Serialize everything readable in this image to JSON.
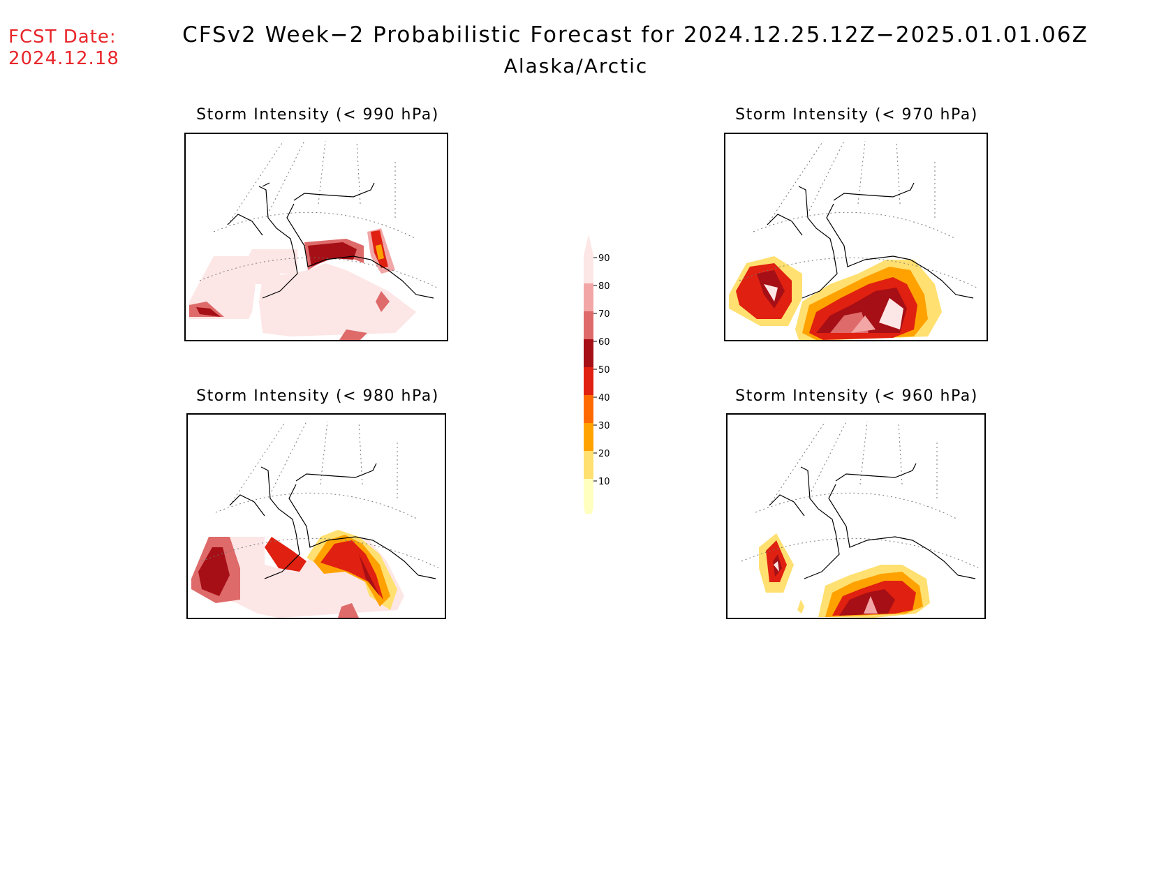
{
  "header": {
    "fcst_label": "FCST Date:",
    "fcst_date": "2024.12.18",
    "title": "CFSv2 Week−2 Probabilistic Forecast for 2024.12.25.12Z−2025.01.01.06Z",
    "subtitle": "Alaska/Arctic"
  },
  "panels": [
    {
      "id": "p990",
      "title": "Storm Intensity (< 990 hPa)"
    },
    {
      "id": "p970",
      "title": "Storm Intensity (< 970 hPa)"
    },
    {
      "id": "p980",
      "title": "Storm Intensity (< 980 hPa)"
    },
    {
      "id": "p960",
      "title": "Storm Intensity (< 960 hPa)"
    }
  ],
  "colorbar": {
    "levels": [
      "90",
      "80",
      "70",
      "60",
      "50",
      "40",
      "30",
      "20",
      "10"
    ],
    "colors": [
      "#fde6e6",
      "#f2a6a6",
      "#de6a6a",
      "#a50f15",
      "#e02010",
      "#ff6a00",
      "#ffa200",
      "#ffe070",
      "#ffffc0"
    ]
  }
}
